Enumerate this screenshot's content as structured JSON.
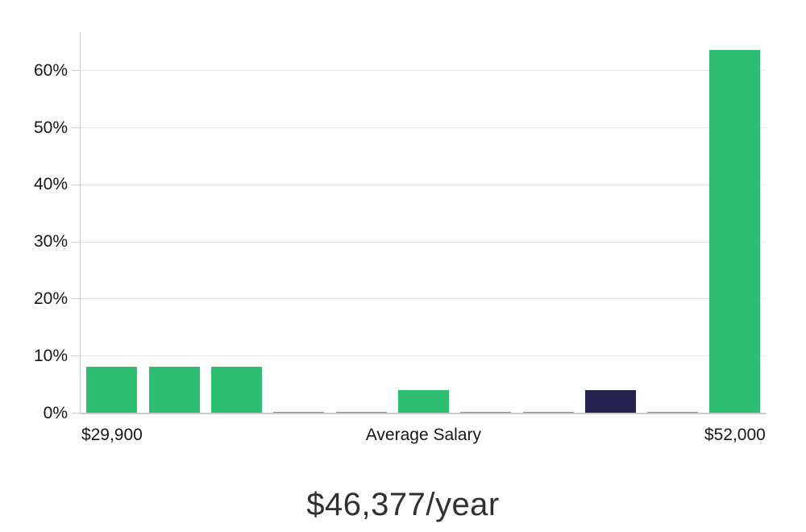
{
  "chart_data": {
    "type": "bar",
    "title": "$46,377/year",
    "xlabel": "",
    "ylabel": "",
    "grid": true,
    "legend": "none",
    "ylim": [
      0,
      66.7
    ],
    "y_tick_labels": [
      "0%",
      "10%",
      "20%",
      "30%",
      "40%",
      "50%",
      "60%"
    ],
    "y_tick_values": [
      0,
      10,
      20,
      30,
      40,
      50,
      60
    ],
    "num_bars": 11,
    "values": [
      8,
      8,
      8,
      0.2,
      0.2,
      4,
      0.2,
      0.2,
      4,
      0.2,
      63.5
    ],
    "highlight_index": 8,
    "bar_names": [
      "salary-bin-1",
      "salary-bin-2",
      "salary-bin-3",
      "salary-bin-4",
      "salary-bin-5",
      "salary-bin-6",
      "salary-bin-7",
      "salary-bin-8",
      "average-salary-bin",
      "salary-bin-10",
      "salary-bin-11"
    ],
    "x_tick_labels": [
      {
        "text": "$29,900",
        "bar_index": 0
      },
      {
        "text": "Average Salary",
        "bar_index": 5
      },
      {
        "text": "$52,000",
        "bar_index": 10
      }
    ]
  },
  "colors": {
    "bar": "#2dbe71",
    "highlight_bar": "#272351",
    "gridline": "#e4e4e4",
    "tick_mark": "#cfcfcf",
    "axis_line": "#c9c9c9",
    "tick_label_text": "#161616",
    "title_text": "#303030",
    "background": "#ffffff"
  }
}
